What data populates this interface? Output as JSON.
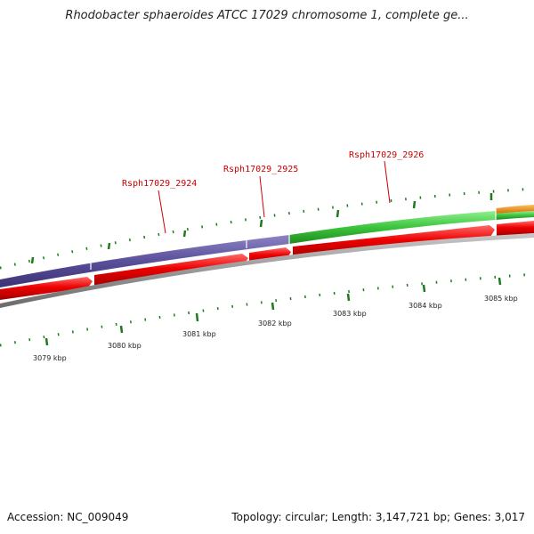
{
  "title": "Rhodobacter sphaeroides ATCC 17029 chromosome 1, complete ge...",
  "footer": {
    "accession": "Accession: NC_009049",
    "summary": "Topology: circular; Length: 3,147,721 bp; Genes: 3,017"
  },
  "genes": [
    {
      "label": "Rsph17029_2924"
    },
    {
      "label": "Rsph17029_2925"
    },
    {
      "label": "Rsph17029_2926"
    }
  ],
  "kbp_labels": [
    "3079 kbp",
    "3080 kbp",
    "3081 kbp",
    "3082 kbp",
    "3083 kbp",
    "3084 kbp",
    "3085 kbp"
  ],
  "colors": {
    "cds_purple": "#5a4f9a",
    "cds_green": "#3cc43c",
    "cds_orange": "#f08c00",
    "gene_red": "#e00000",
    "backbone": "#8a8a8a",
    "tick_green": "#1f7a1f",
    "label_red": "#cc0000"
  }
}
